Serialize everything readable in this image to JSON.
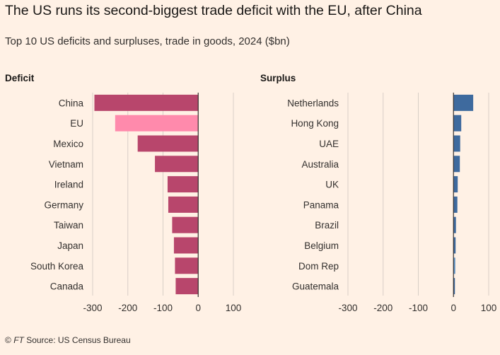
{
  "title": "The US runs its second-biggest trade deficit with the EU, after China",
  "subtitle": "Top 10 US deficits and surpluses, trade in goods, 2024 ($bn)",
  "footer": {
    "copyright": "©",
    "brand": "FT",
    "source": "Source: US Census Bureau"
  },
  "colors": {
    "background": "#fff1e5",
    "deficit": "#b8466c",
    "deficit_highlight": "#ff8aac",
    "surplus": "#3e6a9e",
    "surplus_highlight": "#5f93c7",
    "grid": "#d8cec6",
    "zero_line": "#33302e"
  },
  "chart_data": [
    {
      "type": "bar",
      "orientation": "horizontal",
      "panel_title": "Deficit",
      "categories": [
        "China",
        "EU",
        "Mexico",
        "Vietnam",
        "Ireland",
        "Germany",
        "Taiwan",
        "Japan",
        "South Korea",
        "Canada"
      ],
      "values": [
        -295,
        -236,
        -172,
        -123,
        -87,
        -85,
        -74,
        -69,
        -66,
        -64
      ],
      "highlight": [
        "EU"
      ],
      "xlim": [
        -300,
        100
      ],
      "xticks": [
        -300,
        -200,
        -100,
        0,
        100
      ],
      "xlabel": "",
      "ylabel": ""
    },
    {
      "type": "bar",
      "orientation": "horizontal",
      "panel_title": "Surplus",
      "categories": [
        "Netherlands",
        "Hong Kong",
        "UAE",
        "Australia",
        "UK",
        "Panama",
        "Brazil",
        "Belgium",
        "Dom Rep",
        "Guatemala"
      ],
      "values": [
        56,
        22,
        19,
        18,
        12,
        11,
        7,
        6,
        5,
        4
      ],
      "highlight": [
        "Dom Rep"
      ],
      "xlim": [
        -300,
        100
      ],
      "xticks": [
        -300,
        -200,
        -100,
        0,
        100
      ],
      "xlabel": "",
      "ylabel": ""
    }
  ]
}
